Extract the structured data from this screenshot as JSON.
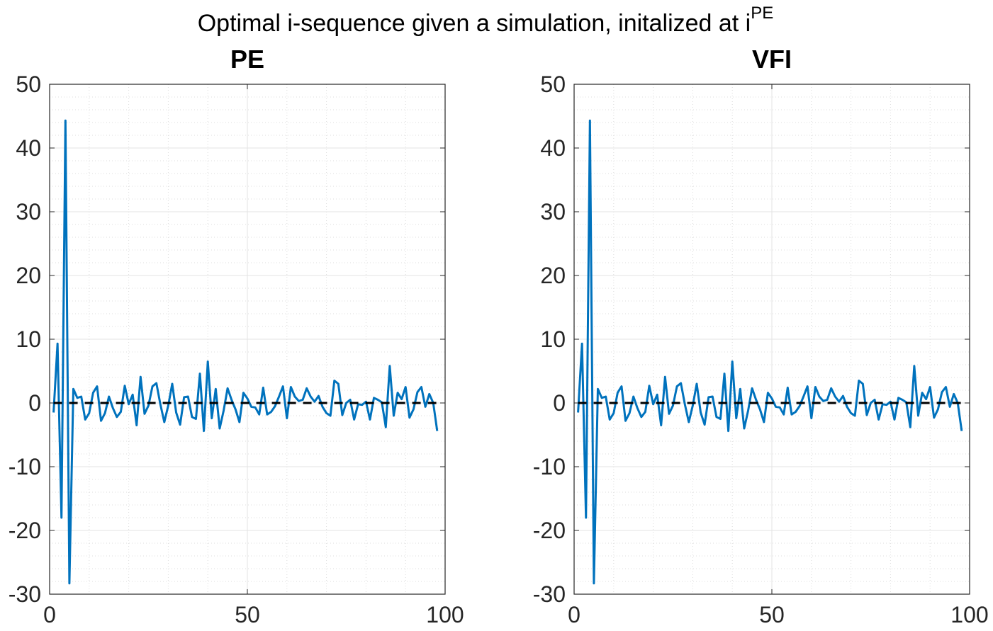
{
  "suptitle": {
    "text": "Optimal i-sequence given a simulation, initalized at i",
    "superscript": "PE"
  },
  "chart_data": [
    {
      "type": "line",
      "title": "PE",
      "x": [
        1,
        2,
        3,
        4,
        5,
        6,
        7,
        8,
        9,
        10,
        11,
        12,
        13,
        14,
        15,
        16,
        17,
        18,
        19,
        20,
        21,
        22,
        23,
        24,
        25,
        26,
        27,
        28,
        29,
        30,
        31,
        32,
        33,
        34,
        35,
        36,
        37,
        38,
        39,
        40,
        41,
        42,
        43,
        44,
        45,
        46,
        47,
        48,
        49,
        50,
        51,
        52,
        53,
        54,
        55,
        56,
        57,
        58,
        59,
        60,
        61,
        62,
        63,
        64,
        65,
        66,
        67,
        68,
        69,
        70,
        71,
        72,
        73,
        74,
        75,
        76,
        77,
        78,
        79,
        80,
        81,
        82,
        83,
        84,
        85,
        86,
        87,
        88,
        89,
        90,
        91,
        92,
        93,
        94,
        95,
        96,
        97,
        98
      ],
      "series": [
        {
          "color": "#0072bd",
          "values": [
            -1.5,
            9.3,
            -18,
            44.3,
            -28.3,
            2.2,
            0.8,
            1.0,
            -2.6,
            -1.6,
            1.6,
            2.6,
            -2.8,
            -1.6,
            1.0,
            -0.8,
            -2.2,
            -1.4,
            2.7,
            -0.2,
            1.3,
            -3.5,
            4.1,
            -1.7,
            -0.4,
            2.6,
            3.1,
            -0.2,
            -3.0,
            -0.4,
            3.0,
            -1.5,
            -3.4,
            0.9,
            1.0,
            -2.2,
            -2.5,
            4.6,
            -4.4,
            6.5,
            -2.4,
            2.2,
            -4.0,
            -1.2,
            2.3,
            0.5,
            -1.0,
            -3.0,
            1.6,
            0.7,
            -0.6,
            -0.7,
            -1.8,
            2.4,
            -1.8,
            -1.4,
            -0.5,
            1.0,
            2.6,
            -2.4,
            2.5,
            1.0,
            0.3,
            0.5,
            2.3,
            1.0,
            0.2,
            1.1,
            -0.6,
            -1.6,
            -2.0,
            3.5,
            3.0,
            -1.9,
            0.0,
            0.5,
            -2.6,
            -0.2,
            -0.3,
            0.2,
            -2.6,
            0.8,
            0.5,
            0.1,
            -3.8,
            5.8,
            -2.0,
            1.6,
            0.6,
            2.5,
            -2.3,
            -1.0,
            1.7,
            2.5,
            -0.6,
            1.4,
            0.0,
            -4.4
          ]
        }
      ],
      "hline": {
        "value": 0,
        "color": "#000000"
      },
      "xlim": [
        0,
        100
      ],
      "xticks": [
        0,
        50,
        100
      ],
      "ylim": [
        -30,
        50
      ],
      "yticks": [
        -30,
        -20,
        -10,
        0,
        10,
        20,
        30,
        40,
        50
      ],
      "grid": true,
      "minor_grid": true
    },
    {
      "type": "line",
      "title": "VFI",
      "x": [
        1,
        2,
        3,
        4,
        5,
        6,
        7,
        8,
        9,
        10,
        11,
        12,
        13,
        14,
        15,
        16,
        17,
        18,
        19,
        20,
        21,
        22,
        23,
        24,
        25,
        26,
        27,
        28,
        29,
        30,
        31,
        32,
        33,
        34,
        35,
        36,
        37,
        38,
        39,
        40,
        41,
        42,
        43,
        44,
        45,
        46,
        47,
        48,
        49,
        50,
        51,
        52,
        53,
        54,
        55,
        56,
        57,
        58,
        59,
        60,
        61,
        62,
        63,
        64,
        65,
        66,
        67,
        68,
        69,
        70,
        71,
        72,
        73,
        74,
        75,
        76,
        77,
        78,
        79,
        80,
        81,
        82,
        83,
        84,
        85,
        86,
        87,
        88,
        89,
        90,
        91,
        92,
        93,
        94,
        95,
        96,
        97,
        98
      ],
      "series": [
        {
          "color": "#0072bd",
          "values": [
            -1.5,
            9.3,
            -18,
            44.3,
            -28.3,
            2.2,
            0.8,
            1.0,
            -2.6,
            -1.6,
            1.6,
            2.6,
            -2.8,
            -1.6,
            1.0,
            -0.8,
            -2.2,
            -1.4,
            2.7,
            -0.2,
            1.3,
            -3.5,
            4.1,
            -1.7,
            -0.4,
            2.6,
            3.1,
            -0.2,
            -3.0,
            -0.4,
            3.0,
            -1.5,
            -3.4,
            0.9,
            1.0,
            -2.2,
            -2.5,
            4.6,
            -4.4,
            6.5,
            -2.4,
            2.2,
            -4.0,
            -1.2,
            2.3,
            0.5,
            -1.0,
            -3.0,
            1.6,
            0.7,
            -0.6,
            -0.7,
            -1.8,
            2.4,
            -1.8,
            -1.4,
            -0.5,
            1.0,
            2.6,
            -2.4,
            2.5,
            1.0,
            0.3,
            0.5,
            2.3,
            1.0,
            0.2,
            1.1,
            -0.6,
            -1.6,
            -2.0,
            3.5,
            3.0,
            -1.9,
            0.0,
            0.5,
            -2.6,
            -0.2,
            -0.3,
            0.2,
            -2.6,
            0.8,
            0.5,
            0.1,
            -3.8,
            5.8,
            -2.0,
            1.6,
            0.6,
            2.5,
            -2.3,
            -1.0,
            1.7,
            2.5,
            -0.6,
            1.4,
            0.0,
            -4.4
          ]
        }
      ],
      "hline": {
        "value": 0,
        "color": "#000000"
      },
      "xlim": [
        0,
        100
      ],
      "xticks": [
        0,
        50,
        100
      ],
      "ylim": [
        -30,
        50
      ],
      "yticks": [
        -30,
        -20,
        -10,
        0,
        10,
        20,
        30,
        40,
        50
      ],
      "grid": true,
      "minor_grid": true
    }
  ]
}
